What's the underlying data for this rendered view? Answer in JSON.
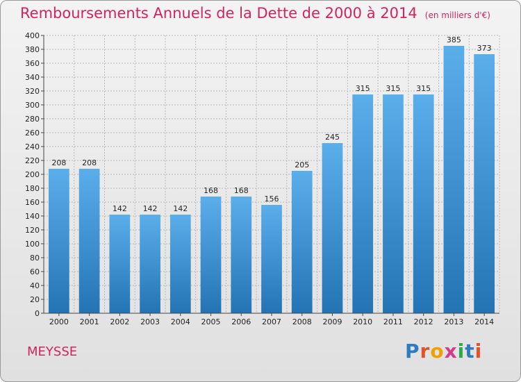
{
  "title": "Remboursements Annuels de la Dette de 2000 à 2014",
  "subtitle": "(en milliers d'€)",
  "commune": "MEYSSE",
  "logo": {
    "text": "Proxiti",
    "letter_colors": [
      "#2f7bbd",
      "#e0522a",
      "#f0a000",
      "#d23c8c",
      "#2aa84a",
      "#2f7bbd",
      "#e0522a"
    ]
  },
  "colors": {
    "title": "#d1245f",
    "bar_light": "#5aaeea",
    "bar_dark": "#2474b4",
    "grid": "#b7b7b7"
  },
  "chart_data": {
    "type": "bar",
    "categories": [
      "2000",
      "2001",
      "2002",
      "2003",
      "2004",
      "2005",
      "2006",
      "2007",
      "2008",
      "2009",
      "2010",
      "2011",
      "2012",
      "2013",
      "2014"
    ],
    "values": [
      208,
      208,
      142,
      142,
      142,
      168,
      168,
      156,
      205,
      245,
      315,
      315,
      315,
      385,
      373
    ],
    "ylim": [
      0,
      400
    ],
    "ytick_step": 20,
    "grid": true,
    "data_labels": true
  }
}
